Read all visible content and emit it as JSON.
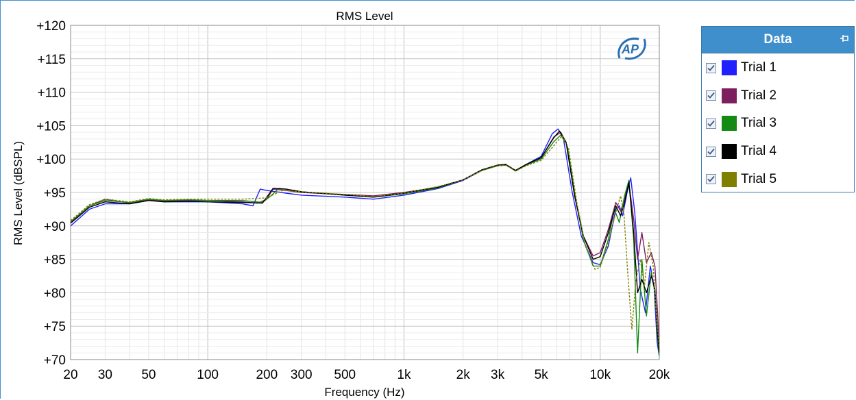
{
  "chart_data": {
    "type": "line",
    "title": "RMS Level",
    "xlabel": "Frequency (Hz)",
    "ylabel": "RMS Level (dBSPL)",
    "x_scale": "log",
    "xlim": [
      20,
      20000
    ],
    "ylim": [
      70,
      120
    ],
    "grid": true,
    "x_ticks": [
      {
        "value": 20,
        "label": "20"
      },
      {
        "value": 30,
        "label": "30"
      },
      {
        "value": 50,
        "label": "50"
      },
      {
        "value": 100,
        "label": "100"
      },
      {
        "value": 200,
        "label": "200"
      },
      {
        "value": 300,
        "label": "300"
      },
      {
        "value": 500,
        "label": "500"
      },
      {
        "value": 1000,
        "label": "1k"
      },
      {
        "value": 2000,
        "label": "2k"
      },
      {
        "value": 3000,
        "label": "3k"
      },
      {
        "value": 5000,
        "label": "5k"
      },
      {
        "value": 10000,
        "label": "10k"
      },
      {
        "value": 20000,
        "label": "20k"
      }
    ],
    "y_ticks": [
      {
        "value": 70,
        "label": "+70"
      },
      {
        "value": 75,
        "label": "+75"
      },
      {
        "value": 80,
        "label": "+80"
      },
      {
        "value": 85,
        "label": "+85"
      },
      {
        "value": 90,
        "label": "+90"
      },
      {
        "value": 95,
        "label": "+95"
      },
      {
        "value": 100,
        "label": "+100"
      },
      {
        "value": 105,
        "label": "+105"
      },
      {
        "value": 110,
        "label": "+110"
      },
      {
        "value": 115,
        "label": "+115"
      },
      {
        "value": 120,
        "label": "+120"
      }
    ],
    "series": [
      {
        "name": "Trial 1",
        "color": "#1f1fff",
        "dashed": false,
        "points": [
          [
            20,
            90.0
          ],
          [
            25,
            92.5
          ],
          [
            30,
            93.3
          ],
          [
            40,
            93.3
          ],
          [
            50,
            93.8
          ],
          [
            60,
            93.6
          ],
          [
            80,
            93.6
          ],
          [
            100,
            93.6
          ],
          [
            150,
            93.3
          ],
          [
            170,
            93.0
          ],
          [
            185,
            95.5
          ],
          [
            200,
            95.3
          ],
          [
            250,
            94.9
          ],
          [
            300,
            94.6
          ],
          [
            500,
            94.3
          ],
          [
            700,
            94.0
          ],
          [
            1000,
            94.6
          ],
          [
            1500,
            95.6
          ],
          [
            2000,
            96.8
          ],
          [
            2500,
            98.3
          ],
          [
            3000,
            99.0
          ],
          [
            3300,
            99.1
          ],
          [
            3700,
            98.3
          ],
          [
            4200,
            99.2
          ],
          [
            5000,
            100.4
          ],
          [
            5700,
            103.8
          ],
          [
            6100,
            104.5
          ],
          [
            6500,
            103.0
          ],
          [
            7200,
            95.0
          ],
          [
            8000,
            88.5
          ],
          [
            9200,
            84.5
          ],
          [
            10000,
            84.2
          ],
          [
            11000,
            87.0
          ],
          [
            12000,
            92.5
          ],
          [
            12500,
            93.0
          ],
          [
            13000,
            91.5
          ],
          [
            13700,
            95.0
          ],
          [
            14300,
            97.2
          ],
          [
            15000,
            92.0
          ],
          [
            16000,
            80.5
          ],
          [
            17000,
            77.0
          ],
          [
            18000,
            84.0
          ],
          [
            18800,
            81.0
          ],
          [
            19500,
            72.5
          ],
          [
            20000,
            70.5
          ]
        ]
      },
      {
        "name": "Trial 2",
        "color": "#7d1f5e",
        "dashed": false,
        "points": [
          [
            20,
            90.6
          ],
          [
            25,
            93.0
          ],
          [
            30,
            94.0
          ],
          [
            40,
            93.4
          ],
          [
            50,
            93.9
          ],
          [
            60,
            93.7
          ],
          [
            80,
            93.8
          ],
          [
            100,
            93.8
          ],
          [
            150,
            93.6
          ],
          [
            180,
            93.4
          ],
          [
            200,
            94.0
          ],
          [
            215,
            95.5
          ],
          [
            250,
            95.3
          ],
          [
            300,
            95.0
          ],
          [
            500,
            94.7
          ],
          [
            700,
            94.5
          ],
          [
            1000,
            95.0
          ],
          [
            1500,
            95.8
          ],
          [
            2000,
            96.9
          ],
          [
            2500,
            98.3
          ],
          [
            3000,
            99.0
          ],
          [
            3300,
            99.1
          ],
          [
            3700,
            98.3
          ],
          [
            4200,
            99.2
          ],
          [
            5000,
            100.2
          ],
          [
            5800,
            103.3
          ],
          [
            6300,
            104.0
          ],
          [
            6700,
            102.5
          ],
          [
            7400,
            94.5
          ],
          [
            8200,
            88.5
          ],
          [
            9200,
            85.5
          ],
          [
            10000,
            86.0
          ],
          [
            11000,
            89.5
          ],
          [
            12000,
            93.5
          ],
          [
            12700,
            92.2
          ],
          [
            13300,
            94.0
          ],
          [
            14000,
            96.5
          ],
          [
            14800,
            91.0
          ],
          [
            15500,
            85.0
          ],
          [
            16300,
            89.0
          ],
          [
            17200,
            84.5
          ],
          [
            18200,
            86.0
          ],
          [
            19000,
            84.0
          ],
          [
            19600,
            77.0
          ],
          [
            20000,
            72.0
          ]
        ]
      },
      {
        "name": "Trial 3",
        "color": "#138a13",
        "dashed": false,
        "points": [
          [
            20,
            90.5
          ],
          [
            25,
            93.0
          ],
          [
            30,
            93.8
          ],
          [
            40,
            93.5
          ],
          [
            50,
            94.0
          ],
          [
            60,
            93.8
          ],
          [
            80,
            93.9
          ],
          [
            100,
            93.8
          ],
          [
            150,
            93.8
          ],
          [
            190,
            93.5
          ],
          [
            210,
            94.5
          ],
          [
            230,
            95.6
          ],
          [
            250,
            95.5
          ],
          [
            300,
            95.1
          ],
          [
            500,
            94.6
          ],
          [
            700,
            94.3
          ],
          [
            1000,
            94.8
          ],
          [
            1500,
            95.7
          ],
          [
            2000,
            96.9
          ],
          [
            2500,
            98.3
          ],
          [
            3000,
            99.0
          ],
          [
            3300,
            99.2
          ],
          [
            3700,
            98.2
          ],
          [
            4200,
            99.1
          ],
          [
            5000,
            100.0
          ],
          [
            5800,
            102.6
          ],
          [
            6300,
            103.6
          ],
          [
            6800,
            102.0
          ],
          [
            7500,
            94.0
          ],
          [
            8200,
            88.0
          ],
          [
            9200,
            84.0
          ],
          [
            10000,
            84.0
          ],
          [
            11000,
            88.0
          ],
          [
            11800,
            92.5
          ],
          [
            12500,
            90.5
          ],
          [
            13300,
            94.5
          ],
          [
            14000,
            96.8
          ],
          [
            14800,
            88.0
          ],
          [
            15500,
            71.0
          ],
          [
            16300,
            85.0
          ],
          [
            17200,
            76.5
          ],
          [
            18200,
            83.0
          ],
          [
            19000,
            80.0
          ],
          [
            19600,
            73.0
          ],
          [
            20000,
            70.5
          ]
        ]
      },
      {
        "name": "Trial 4",
        "color": "#000000",
        "dashed": false,
        "points": [
          [
            20,
            90.4
          ],
          [
            25,
            92.8
          ],
          [
            30,
            93.6
          ],
          [
            40,
            93.3
          ],
          [
            50,
            93.8
          ],
          [
            60,
            93.6
          ],
          [
            80,
            93.7
          ],
          [
            100,
            93.6
          ],
          [
            150,
            93.5
          ],
          [
            190,
            93.4
          ],
          [
            215,
            95.6
          ],
          [
            250,
            95.5
          ],
          [
            300,
            95.1
          ],
          [
            500,
            94.6
          ],
          [
            700,
            94.3
          ],
          [
            1000,
            94.9
          ],
          [
            1500,
            95.8
          ],
          [
            2000,
            96.9
          ],
          [
            2500,
            98.4
          ],
          [
            3000,
            99.1
          ],
          [
            3300,
            99.2
          ],
          [
            3700,
            98.3
          ],
          [
            4200,
            99.2
          ],
          [
            5000,
            100.2
          ],
          [
            5800,
            103.2
          ],
          [
            6200,
            104.2
          ],
          [
            6700,
            102.5
          ],
          [
            7400,
            94.5
          ],
          [
            8200,
            88.5
          ],
          [
            9200,
            85.0
          ],
          [
            10000,
            85.4
          ],
          [
            11000,
            89.0
          ],
          [
            12000,
            93.0
          ],
          [
            12700,
            91.5
          ],
          [
            13300,
            93.5
          ],
          [
            14000,
            96.5
          ],
          [
            14800,
            89.0
          ],
          [
            15500,
            80.0
          ],
          [
            16300,
            82.0
          ],
          [
            17200,
            80.0
          ],
          [
            18200,
            82.5
          ],
          [
            19000,
            80.5
          ],
          [
            19600,
            74.0
          ],
          [
            20000,
            71.0
          ]
        ]
      },
      {
        "name": "Trial 5",
        "color": "#808000",
        "dashed": true,
        "points": [
          [
            20,
            90.8
          ],
          [
            25,
            93.2
          ],
          [
            30,
            94.0
          ],
          [
            40,
            93.6
          ],
          [
            50,
            94.1
          ],
          [
            60,
            93.9
          ],
          [
            80,
            94.0
          ],
          [
            100,
            94.0
          ],
          [
            150,
            94.0
          ],
          [
            200,
            94.2
          ],
          [
            240,
            95.3
          ],
          [
            300,
            95.1
          ],
          [
            500,
            94.7
          ],
          [
            700,
            94.4
          ],
          [
            1000,
            94.9
          ],
          [
            1500,
            95.9
          ],
          [
            2000,
            96.9
          ],
          [
            2500,
            98.3
          ],
          [
            3000,
            99.0
          ],
          [
            3300,
            99.1
          ],
          [
            3700,
            98.2
          ],
          [
            4200,
            99.0
          ],
          [
            5000,
            99.8
          ],
          [
            5800,
            102.0
          ],
          [
            6400,
            103.5
          ],
          [
            6900,
            101.5
          ],
          [
            7600,
            93.5
          ],
          [
            8400,
            87.0
          ],
          [
            9400,
            83.5
          ],
          [
            10000,
            83.8
          ],
          [
            11000,
            87.5
          ],
          [
            12000,
            92.0
          ],
          [
            12700,
            94.5
          ],
          [
            13200,
            92.0
          ],
          [
            13800,
            83.0
          ],
          [
            14500,
            74.5
          ],
          [
            15200,
            82.0
          ],
          [
            16000,
            85.0
          ],
          [
            16800,
            81.0
          ],
          [
            17700,
            87.5
          ],
          [
            18600,
            84.0
          ],
          [
            19400,
            76.0
          ],
          [
            20000,
            72.0
          ]
        ]
      }
    ]
  },
  "legend": {
    "title": "Data",
    "items": [
      {
        "label": "Trial 1",
        "color": "#1f1fff",
        "checked": true
      },
      {
        "label": "Trial 2",
        "color": "#7d1f5e",
        "checked": true
      },
      {
        "label": "Trial 3",
        "color": "#138a13",
        "checked": true
      },
      {
        "label": "Trial 4",
        "color": "#000000",
        "checked": true
      },
      {
        "label": "Trial 5",
        "color": "#808000",
        "checked": true
      }
    ]
  },
  "icons": {
    "logo": "ap-logo-icon",
    "pin": "pin-icon",
    "checkbox": "checkmark-icon"
  }
}
